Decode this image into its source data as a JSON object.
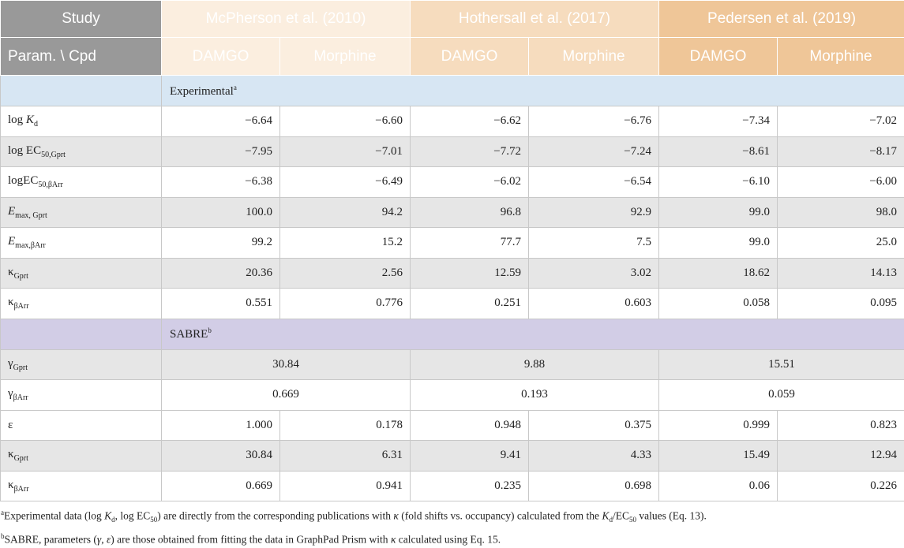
{
  "header": {
    "study_label": "Study",
    "param_label": "Param. \\ Cpd",
    "studies": [
      "McPherson et al. (2010)",
      "Hothersall et al. (2017)",
      "Pedersen et al. (2019)"
    ],
    "compounds": [
      "DAMGO",
      "Morphine"
    ]
  },
  "sections": {
    "experimental": "Experimental",
    "experimental_mark": "a",
    "sabre": "SABRE",
    "sabre_mark": "b"
  },
  "params": {
    "logkd": {
      "pre": "log ",
      "sym": "K",
      "sub": "d"
    },
    "logec_gprt": {
      "pre": "log EC",
      "sub": "50,Gprt"
    },
    "logec_barr": {
      "pre": "logEC",
      "sub": "50,βArr"
    },
    "emax_gprt": {
      "sym": "E",
      "sub": "max, Gprt"
    },
    "emax_barr": {
      "sym": "E",
      "sub": "max,βArr"
    },
    "kappa_gprt": {
      "sym": "κ",
      "sub": "Gprt"
    },
    "kappa_barr": {
      "sym": "κ",
      "sub": "βArr"
    },
    "gamma_gprt": {
      "sym": "γ",
      "sub": "Gprt"
    },
    "gamma_barr": {
      "sym": "γ",
      "sub": "βArr"
    },
    "epsilon": {
      "sym": "ε"
    }
  },
  "rows": {
    "logkd": [
      "−6.64",
      "−6.60",
      "−6.62",
      "−6.76",
      "−7.34",
      "−7.02"
    ],
    "logec_gprt": [
      "−7.95",
      "−7.01",
      "−7.72",
      "−7.24",
      "−8.61",
      "−8.17"
    ],
    "logec_barr": [
      "−6.38",
      "−6.49",
      "−6.02",
      "−6.54",
      "−6.10",
      "−6.00"
    ],
    "emax_gprt": [
      "100.0",
      "94.2",
      "96.8",
      "92.9",
      "99.0",
      "98.0"
    ],
    "emax_barr": [
      "99.2",
      "15.2",
      "77.7",
      "7.5",
      "99.0",
      "25.0"
    ],
    "kappa_gprt": [
      "20.36",
      "2.56",
      "12.59",
      "3.02",
      "18.62",
      "14.13"
    ],
    "kappa_barr": [
      "0.551",
      "0.776",
      "0.251",
      "0.603",
      "0.058",
      "0.095"
    ],
    "gamma_gprt": [
      "30.84",
      "9.88",
      "15.51"
    ],
    "gamma_barr": [
      "0.669",
      "0.193",
      "0.059"
    ],
    "epsilon": [
      "1.000",
      "0.178",
      "0.948",
      "0.375",
      "0.999",
      "0.823"
    ],
    "kappa_gprt_s": [
      "30.84",
      "6.31",
      "9.41",
      "4.33",
      "15.49",
      "12.94"
    ],
    "kappa_barr_s": [
      "0.669",
      "0.941",
      "0.235",
      "0.698",
      "0.06",
      "0.226"
    ]
  },
  "footnotes": {
    "a": {
      "mark": "a",
      "t1": "Experimental data (log ",
      "kd_sym": "K",
      "kd_sub": "d",
      "t2": ", log EC",
      "ec_sub": "50",
      "t3": ") are directly from the corresponding publications with ",
      "kappa": "κ",
      "t4": " (fold shifts vs. occupancy) calculated from the ",
      "kd2_sym": "K",
      "kd2_sub": "d",
      "t5": "/EC",
      "ec2_sub": "50",
      "t6": " values (Eq. 13)."
    },
    "b": {
      "mark": "b",
      "t1": "SABRE, parameters (",
      "gamma": "γ",
      "t2": ", ",
      "eps": "ε",
      "t3": ") are those obtained from fitting the data in GraphPad Prism with ",
      "kappa": "κ",
      "t4": " calculated using Eq. 15."
    }
  }
}
